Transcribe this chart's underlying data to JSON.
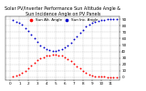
{
  "title": "Solar PV/Inverter Performance Sun Altitude Angle & Sun Incidence Angle on PV Panels",
  "bg_color": "#ffffff",
  "grid_color": "#aaaaaa",
  "series": [
    {
      "label": "Sun Alt. Angle",
      "color": "#ff0000",
      "x": [
        0.3,
        0.7,
        1.0,
        1.3,
        1.7,
        2.0,
        2.3,
        2.7,
        3.0,
        3.3,
        3.7,
        4.0,
        4.3,
        4.7,
        5.0,
        5.3,
        5.7,
        6.0,
        6.3,
        6.7,
        7.0,
        7.3,
        7.7,
        8.0,
        8.3,
        8.7,
        9.0,
        9.3,
        9.7,
        10.0,
        10.3,
        10.7,
        11.0,
        11.3,
        11.7
      ],
      "y": [
        1,
        2,
        4,
        6,
        10,
        14,
        18,
        22,
        26,
        29,
        31,
        33,
        34,
        35,
        35,
        34,
        33,
        31,
        28,
        25,
        21,
        17,
        13,
        9,
        6,
        4,
        2,
        1,
        0.5,
        0.2,
        0.1,
        0.0,
        0.0,
        0.0,
        0.0
      ]
    },
    {
      "label": "Sun Inc. Angle",
      "color": "#0000cc",
      "x": [
        0.3,
        0.7,
        1.0,
        1.3,
        1.7,
        2.0,
        2.3,
        2.7,
        3.0,
        3.3,
        3.7,
        4.0,
        4.3,
        4.7,
        5.0,
        5.3,
        5.7,
        6.0,
        6.3,
        6.7,
        7.0,
        7.3,
        7.7,
        8.0,
        8.3,
        8.7,
        9.0,
        9.3,
        9.7,
        10.0,
        10.3,
        10.7,
        11.0,
        11.3,
        11.7
      ],
      "y": [
        89,
        87,
        85,
        82,
        77,
        72,
        67,
        61,
        55,
        50,
        46,
        43,
        42,
        41,
        41,
        42,
        43,
        46,
        50,
        54,
        59,
        64,
        69,
        74,
        79,
        82,
        85,
        87,
        88,
        89,
        89,
        90,
        90,
        90,
        90
      ]
    }
  ],
  "xlim": [
    -0.5,
    12
  ],
  "ylim": [
    -5,
    95
  ],
  "ytick_positions": [
    0,
    10,
    20,
    30,
    40,
    50,
    60,
    70,
    80,
    90
  ],
  "xtick_positions": [
    0,
    1,
    2,
    3,
    4,
    5,
    6,
    7,
    8,
    9,
    10,
    11
  ],
  "marker_size": 1.8,
  "title_fontsize": 3.5,
  "tick_fontsize": 3.0,
  "legend_fontsize": 3.0
}
